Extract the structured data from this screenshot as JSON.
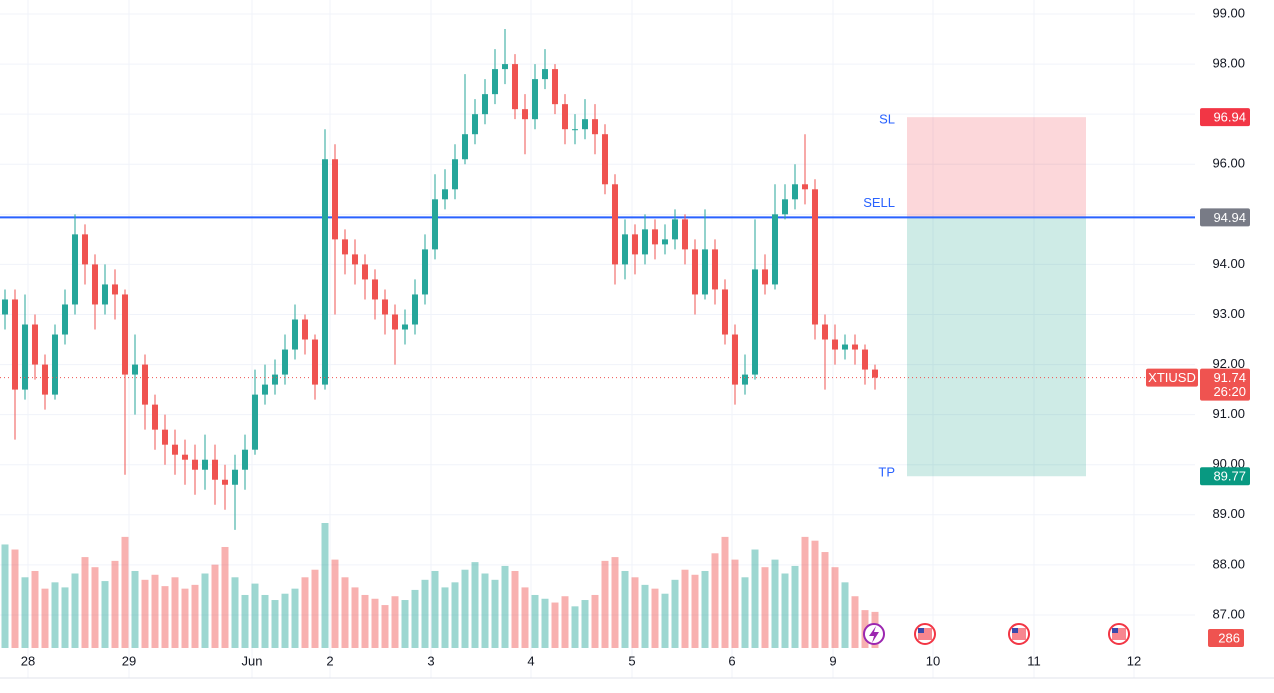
{
  "chart_data": {
    "type": "candlestick",
    "symbol": "XTIUSD",
    "countdown": "26:20",
    "up_color": "#26a69a",
    "down_color": "#ef5350",
    "x": [
      0,
      1,
      2,
      3,
      4,
      5,
      6,
      7,
      8,
      9,
      10,
      11,
      12,
      13,
      14,
      15,
      16,
      17,
      18,
      19,
      20,
      21,
      22,
      23,
      24,
      25,
      26,
      27,
      28,
      29,
      30,
      31,
      32,
      33,
      34,
      35,
      36,
      37,
      38,
      39,
      40,
      41,
      42,
      43,
      44,
      45,
      46,
      47,
      48,
      49,
      50,
      51,
      52,
      53,
      54,
      55,
      56,
      57,
      58,
      59,
      60,
      61,
      62,
      63,
      64,
      65,
      66,
      67,
      68,
      69,
      70,
      71,
      72,
      73,
      74,
      75,
      76,
      77,
      78,
      79,
      80,
      81,
      82,
      83,
      84,
      85,
      86,
      87
    ],
    "open": [
      93.0,
      93.3,
      91.5,
      92.8,
      92.0,
      91.4,
      92.6,
      93.2,
      94.6,
      94.0,
      93.2,
      93.6,
      93.4,
      91.8,
      92.0,
      91.2,
      90.7,
      90.4,
      90.2,
      90.1,
      89.9,
      90.1,
      89.7,
      89.6,
      89.9,
      90.3,
      91.4,
      91.6,
      91.8,
      92.3,
      92.9,
      92.5,
      91.6,
      96.1,
      94.5,
      94.2,
      94.0,
      93.7,
      93.3,
      93.0,
      92.7,
      92.8,
      93.4,
      94.3,
      95.3,
      95.5,
      96.1,
      96.6,
      97.0,
      97.4,
      97.9,
      98.0,
      97.1,
      96.9,
      97.7,
      97.9,
      97.2,
      96.7,
      96.7,
      96.9,
      96.6,
      95.6,
      94.0,
      94.6,
      94.2,
      94.7,
      94.4,
      94.5,
      94.9,
      94.3,
      93.4,
      94.3,
      93.5,
      92.6,
      91.6,
      91.8,
      93.9,
      93.6,
      95.0,
      95.3,
      95.6,
      95.5,
      92.8,
      92.5,
      92.3,
      92.4,
      92.3,
      91.9
    ],
    "high": [
      93.5,
      93.5,
      93.4,
      93.0,
      92.2,
      92.8,
      93.5,
      95.0,
      94.8,
      94.2,
      94.0,
      93.9,
      93.5,
      92.6,
      92.2,
      91.4,
      91.0,
      90.7,
      90.5,
      90.4,
      90.6,
      90.4,
      90.0,
      90.2,
      90.6,
      91.9,
      92.0,
      92.1,
      92.6,
      93.2,
      93.0,
      92.6,
      96.7,
      96.4,
      94.7,
      94.5,
      94.2,
      93.9,
      93.5,
      93.2,
      93.1,
      93.7,
      94.6,
      95.8,
      95.9,
      96.4,
      97.8,
      97.3,
      97.7,
      98.3,
      98.7,
      98.2,
      97.4,
      98.0,
      98.3,
      98.0,
      97.4,
      97.0,
      97.3,
      97.2,
      96.8,
      95.8,
      94.9,
      94.8,
      95.0,
      94.9,
      94.8,
      95.1,
      95.0,
      94.5,
      95.1,
      94.5,
      93.7,
      92.8,
      92.2,
      94.9,
      94.2,
      95.6,
      95.6,
      96.0,
      96.6,
      95.7,
      93.0,
      92.8,
      92.6,
      92.6,
      92.4,
      92.0
    ],
    "low": [
      92.7,
      90.5,
      91.3,
      91.7,
      91.1,
      91.3,
      92.4,
      93.0,
      93.6,
      92.7,
      93.0,
      92.9,
      89.8,
      91.0,
      90.7,
      90.3,
      90.0,
      89.8,
      89.6,
      89.4,
      89.5,
      89.2,
      89.1,
      88.7,
      89.5,
      90.2,
      91.2,
      91.4,
      91.6,
      92.1,
      92.2,
      91.3,
      91.5,
      93.0,
      93.8,
      93.6,
      93.3,
      92.9,
      92.6,
      92.0,
      92.4,
      92.6,
      93.2,
      94.1,
      95.1,
      95.3,
      96.0,
      96.4,
      96.8,
      97.2,
      97.6,
      96.9,
      96.2,
      96.7,
      97.5,
      97.0,
      96.4,
      96.4,
      96.5,
      96.2,
      95.4,
      93.6,
      93.7,
      93.8,
      94.0,
      94.1,
      94.2,
      94.3,
      94.0,
      93.0,
      93.3,
      93.2,
      92.4,
      91.2,
      91.4,
      91.7,
      93.4,
      93.5,
      94.9,
      95.1,
      95.2,
      92.5,
      91.5,
      92.0,
      92.1,
      92.0,
      91.6,
      91.5
    ],
    "close": [
      93.3,
      91.5,
      92.8,
      92.0,
      91.4,
      92.6,
      93.2,
      94.6,
      94.0,
      93.2,
      93.6,
      93.4,
      91.8,
      92.0,
      91.2,
      90.7,
      90.4,
      90.2,
      90.1,
      89.9,
      90.1,
      89.7,
      89.6,
      89.9,
      90.3,
      91.4,
      91.6,
      91.8,
      92.3,
      92.9,
      92.5,
      91.6,
      96.1,
      94.5,
      94.2,
      94.0,
      93.7,
      93.3,
      93.0,
      92.7,
      92.8,
      93.4,
      94.3,
      95.3,
      95.5,
      96.1,
      96.6,
      97.0,
      97.4,
      97.9,
      98.0,
      97.1,
      96.9,
      97.7,
      97.9,
      97.2,
      96.7,
      96.7,
      96.9,
      96.6,
      95.6,
      94.0,
      94.6,
      94.2,
      94.7,
      94.4,
      94.5,
      94.9,
      94.3,
      93.4,
      94.3,
      93.5,
      92.6,
      91.6,
      91.8,
      93.9,
      93.6,
      95.0,
      95.3,
      95.6,
      95.5,
      92.8,
      92.5,
      92.3,
      92.4,
      92.3,
      91.9,
      91.74
    ],
    "volume": [
      820,
      780,
      560,
      610,
      470,
      520,
      480,
      590,
      720,
      640,
      530,
      690,
      880,
      610,
      540,
      580,
      490,
      560,
      470,
      500,
      590,
      660,
      800,
      560,
      420,
      510,
      420,
      380,
      430,
      470,
      560,
      620,
      990,
      700,
      560,
      480,
      420,
      390,
      340,
      410,
      380,
      460,
      540,
      610,
      480,
      520,
      620,
      680,
      590,
      540,
      650,
      610,
      480,
      420,
      390,
      360,
      410,
      330,
      380,
      420,
      690,
      720,
      610,
      560,
      500,
      470,
      430,
      540,
      620,
      580,
      610,
      750,
      880,
      700,
      560,
      780,
      640,
      700,
      590,
      650,
      880,
      850,
      760,
      640,
      520,
      410,
      300,
      286
    ],
    "xlim": [
      -0.5,
      119
    ],
    "xticks": [
      {
        "value": 2.3,
        "label": "28"
      },
      {
        "value": 12.4,
        "label": "29"
      },
      {
        "value": 24.7,
        "label": "Jun"
      },
      {
        "value": 32.5,
        "label": "2"
      },
      {
        "value": 42.6,
        "label": "3"
      },
      {
        "value": 52.6,
        "label": "4"
      },
      {
        "value": 62.7,
        "label": "5"
      },
      {
        "value": 72.7,
        "label": "6"
      },
      {
        "value": 82.8,
        "label": "9"
      },
      {
        "value": 92.8,
        "label": "10"
      },
      {
        "value": 102.9,
        "label": "11"
      },
      {
        "value": 112.9,
        "label": "12"
      }
    ],
    "ylim": [
      86.34,
      99.28
    ],
    "yticks": [
      {
        "value": 87,
        "label": "87.00"
      },
      {
        "value": 88,
        "label": "88.00"
      },
      {
        "value": 89,
        "label": "89.00"
      },
      {
        "value": 90,
        "label": "90.00"
      },
      {
        "value": 91,
        "label": "91.00"
      },
      {
        "value": 92,
        "label": "92.00"
      },
      {
        "value": 93,
        "label": "93.00"
      },
      {
        "value": 94,
        "label": "94.00"
      },
      {
        "value": 95,
        "label": "95.00"
      },
      {
        "value": 96,
        "label": "96.00"
      },
      {
        "value": 97,
        "label": "97.00"
      },
      {
        "value": 98,
        "label": "98.00"
      },
      {
        "value": 99,
        "label": "99.00"
      }
    ],
    "grid": true,
    "position": {
      "entry": 94.94,
      "stop": 96.94,
      "target": 89.77,
      "entry_label": "SELL",
      "stop_label": "SL",
      "target_label": "TP",
      "x_start": 90.2,
      "x_end": 108.1,
      "line_color": "#2962ff",
      "stop_color": "#f23645",
      "target_color": "#089981"
    }
  }
}
